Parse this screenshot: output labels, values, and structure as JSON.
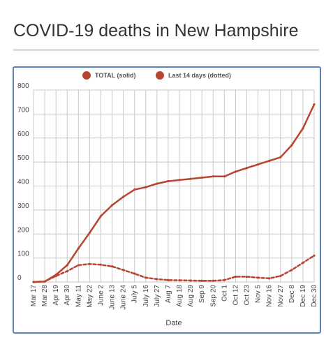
{
  "page": {
    "title": "COVID-19 deaths in New Hampshire"
  },
  "colors": {
    "series": "#b84530",
    "grid": "#c8c8c8",
    "frame": "#5b82b8"
  },
  "chart_data": {
    "type": "line",
    "xlabel": "Date",
    "ylabel": "",
    "ylim": [
      0,
      800
    ],
    "yticks": [
      0,
      100,
      200,
      300,
      400,
      500,
      600,
      700,
      800
    ],
    "grid": true,
    "legend_position": "top-center",
    "x": [
      "Mar 17",
      "Mar 28",
      "Apr 19",
      "Apr 30",
      "May 11",
      "May 22",
      "June 2",
      "June 13",
      "June 24",
      "July 5",
      "July 16",
      "July 27",
      "Aug 7",
      "Aug 18",
      "Aug 29",
      "Sep 9",
      "Sep 20",
      "Oct 1",
      "Oct 12",
      "Oct 23",
      "Nov 5",
      "Nov 16",
      "Nov 27",
      "Dec 8",
      "Dec 19",
      "Dec 30"
    ],
    "series": [
      {
        "name": "TOTAL (solid)",
        "style": "solid",
        "values": [
          0,
          2,
          30,
          70,
          140,
          205,
          275,
          320,
          355,
          385,
          395,
          410,
          420,
          425,
          430,
          435,
          440,
          440,
          460,
          475,
          490,
          505,
          520,
          570,
          640,
          740
        ]
      },
      {
        "name": "Last 14 days (dotted)",
        "style": "dotted",
        "values": [
          0,
          2,
          25,
          45,
          70,
          75,
          72,
          65,
          50,
          35,
          18,
          12,
          8,
          7,
          6,
          5,
          5,
          8,
          22,
          22,
          18,
          15,
          25,
          50,
          80,
          110
        ]
      }
    ]
  }
}
